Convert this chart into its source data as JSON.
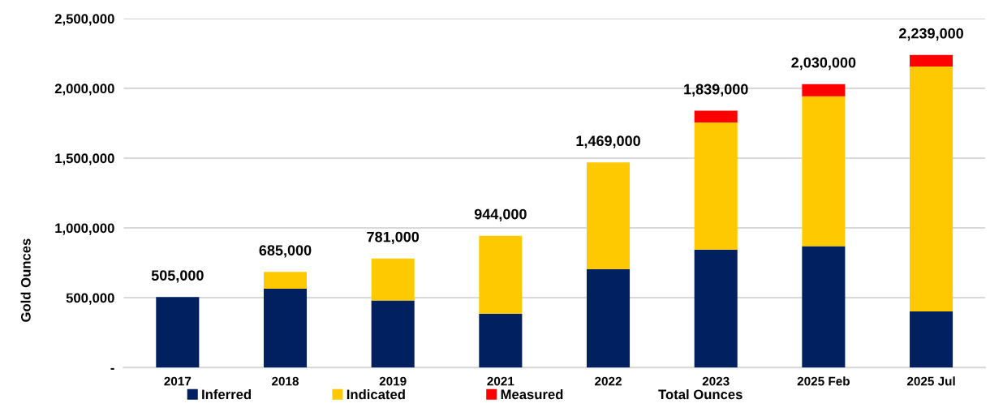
{
  "chart_data": {
    "type": "bar",
    "stacked": true,
    "ylabel": "Gold Ounces",
    "categories": [
      "2017",
      "2018",
      "2019",
      "2021",
      "2022",
      "2023",
      "2025 Feb",
      "2025 Jul"
    ],
    "series": [
      {
        "name": "Inferred",
        "color": "#002060",
        "values": [
          505000,
          565000,
          480000,
          385000,
          706000,
          845000,
          870000,
          402000
        ]
      },
      {
        "name": "Indicated",
        "color": "#ffc901",
        "values": [
          null,
          120000,
          301000,
          559000,
          763000,
          911000,
          1073000,
          1754000
        ]
      },
      {
        "name": "Measured",
        "color": "#ff0000",
        "values": [
          null,
          null,
          null,
          null,
          null,
          83000,
          87000,
          83000
        ]
      }
    ],
    "totals": [
      "505,000",
      "685,000",
      "781,000",
      "944,000",
      "1,469,000",
      "1,839,000",
      "2,030,000",
      "2,239,000"
    ],
    "annotations": [
      "Total Ounces"
    ],
    "ylim": [
      0,
      2500000
    ],
    "yticks": [
      {
        "value": 0,
        "label": "-"
      },
      {
        "value": 500000,
        "label": "500,000"
      },
      {
        "value": 1000000,
        "label": "1,000,000"
      },
      {
        "value": 1500000,
        "label": "1,500,000"
      },
      {
        "value": 2000000,
        "label": "2,000,000"
      },
      {
        "value": 2500000,
        "label": "2,500,000"
      }
    ],
    "grid": "y",
    "legend": "bottom"
  }
}
